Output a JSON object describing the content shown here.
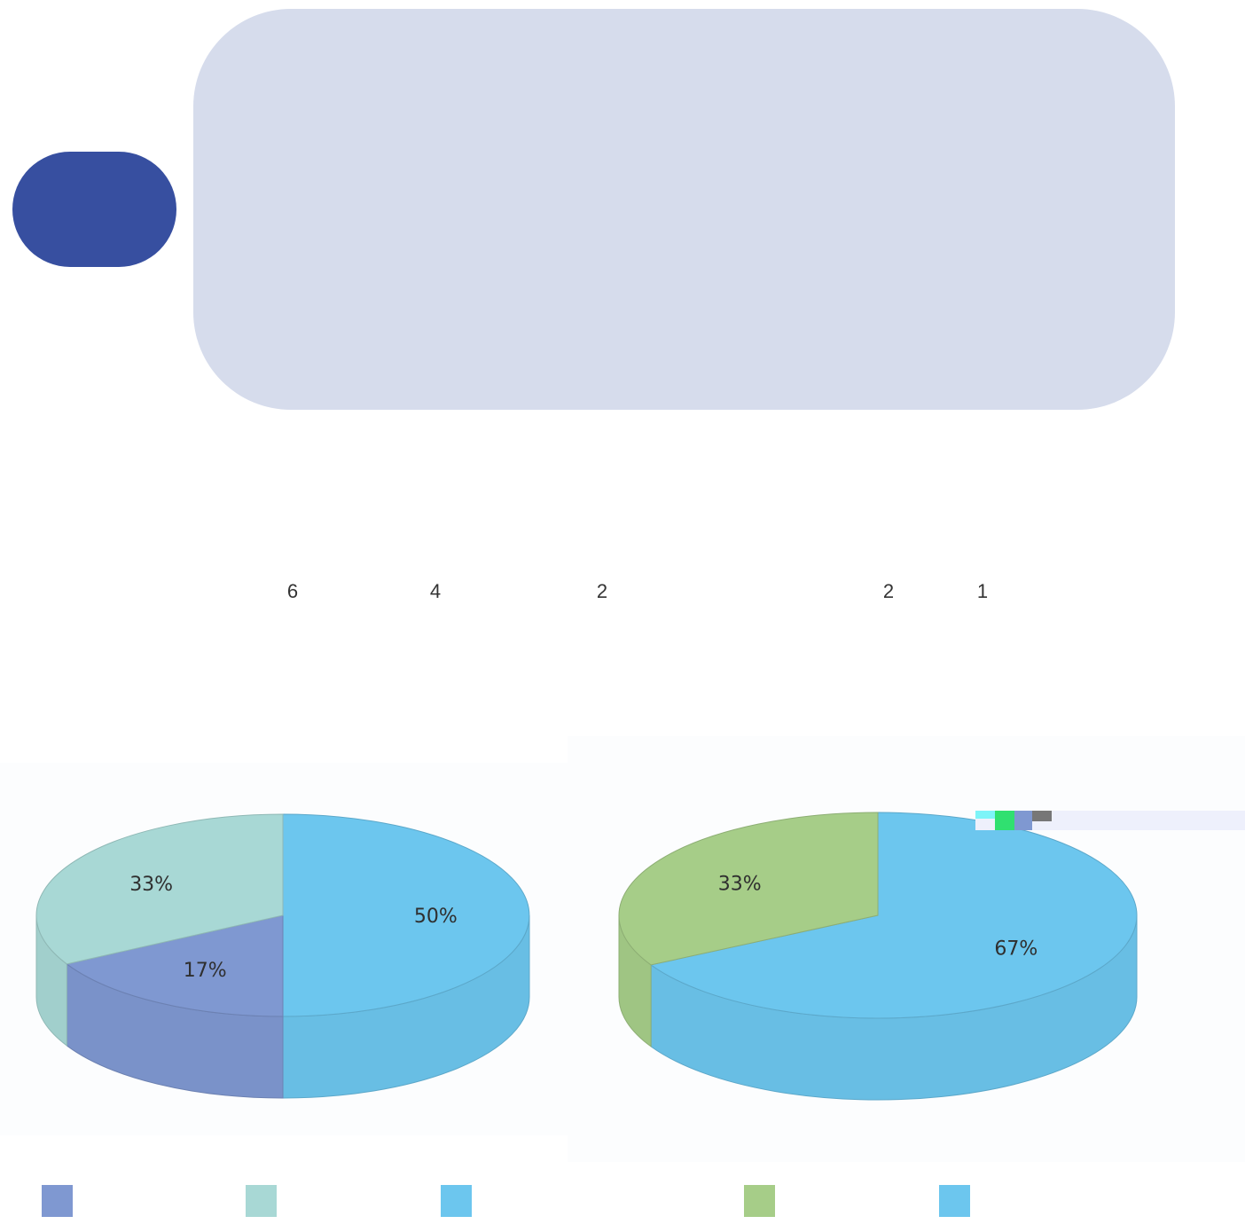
{
  "counts": {
    "chart1": [
      "6",
      "4",
      "2"
    ],
    "chart2": [
      "2",
      "1"
    ]
  },
  "colors": {
    "badge": "#374fa0",
    "panel": "#d6dcec",
    "slice_purple": "#7f98d1",
    "slice_teal": "#a8d8d5",
    "slice_blue": "#6cc6ee",
    "slice_green": "#a6cd88"
  },
  "chart_data": [
    {
      "type": "pie",
      "slices": [
        {
          "label": "50%",
          "value": 50,
          "color": "#6cc6ee"
        },
        {
          "label": "17%",
          "value": 17,
          "color": "#7f98d1"
        },
        {
          "label": "33%",
          "value": 33,
          "color": "#a8d8d5"
        }
      ],
      "legend_colors": [
        "#7f98d1",
        "#a8d8d5",
        "#6cc6ee"
      ],
      "style": "3d"
    },
    {
      "type": "pie",
      "slices": [
        {
          "label": "67%",
          "value": 67,
          "color": "#6cc6ee"
        },
        {
          "label": "33%",
          "value": 33,
          "color": "#a6cd88"
        }
      ],
      "legend_colors": [
        "#a6cd88",
        "#6cc6ee"
      ],
      "style": "3d"
    }
  ]
}
